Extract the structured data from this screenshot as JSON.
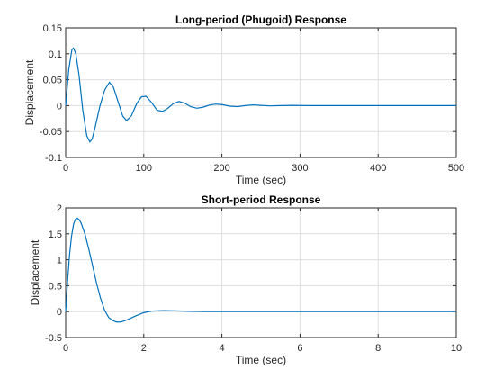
{
  "chart_data": [
    {
      "type": "line",
      "title": "Long-period (Phugoid) Response",
      "xlabel": "Time (sec)",
      "ylabel": "Displacement",
      "xlim": [
        0,
        500
      ],
      "ylim": [
        -0.1,
        0.15
      ],
      "xticks": [
        0,
        100,
        200,
        300,
        400,
        500
      ],
      "xtick_labels": [
        "0",
        "100",
        "200",
        "300",
        "400",
        "500"
      ],
      "yticks": [
        -0.1,
        -0.05,
        0,
        0.05,
        0.1,
        0.15
      ],
      "ytick_labels": [
        "-0.1",
        "-0.05",
        "0",
        "0.05",
        "0.1",
        "0.15"
      ],
      "grid": true,
      "series": [
        {
          "color": "#0072bd",
          "x": [
            0,
            4,
            8,
            10,
            13,
            17,
            22,
            27,
            31,
            34,
            38,
            44,
            50,
            56,
            61,
            67,
            73,
            78,
            84,
            91,
            97,
            103,
            110,
            117,
            124,
            130,
            138,
            145,
            152,
            160,
            168,
            176,
            184,
            192,
            200,
            210,
            220,
            230,
            240,
            250,
            262,
            275,
            290,
            310,
            340,
            380,
            420,
            460,
            500
          ],
          "y": [
            0,
            0.07,
            0.108,
            0.111,
            0.1,
            0.06,
            -0.01,
            -0.058,
            -0.07,
            -0.064,
            -0.04,
            0.0,
            0.03,
            0.045,
            0.036,
            0.008,
            -0.02,
            -0.029,
            -0.02,
            0.004,
            0.017,
            0.018,
            0.006,
            -0.009,
            -0.011,
            -0.006,
            0.004,
            0.008,
            0.005,
            -0.002,
            -0.005,
            -0.003,
            0.001,
            0.003,
            0.002,
            -0.001,
            -0.002,
            0.0,
            0.0015,
            0.0005,
            -0.0005,
            0.0,
            0.0005,
            0.0,
            0.0,
            0.0,
            0.0,
            0.0,
            0.0
          ]
        }
      ]
    },
    {
      "type": "line",
      "title": "Short-period Response",
      "xlabel": "Time (sec)",
      "ylabel": "Displacement",
      "xlim": [
        0,
        10
      ],
      "ylim": [
        -0.5,
        2
      ],
      "xticks": [
        0,
        2,
        4,
        6,
        8,
        10
      ],
      "xtick_labels": [
        "0",
        "2",
        "4",
        "6",
        "8",
        "10"
      ],
      "yticks": [
        -0.5,
        0,
        0.5,
        1,
        1.5,
        2
      ],
      "ytick_labels": [
        "-0.5",
        "0",
        "0.5",
        "1",
        "1.5",
        "2"
      ],
      "grid": true,
      "series": [
        {
          "color": "#0072bd",
          "x": [
            0,
            0.05,
            0.1,
            0.15,
            0.2,
            0.25,
            0.3,
            0.35,
            0.4,
            0.5,
            0.6,
            0.7,
            0.8,
            0.9,
            1.0,
            1.1,
            1.2,
            1.3,
            1.4,
            1.5,
            1.6,
            1.8,
            2.0,
            2.2,
            2.5,
            2.8,
            3.2,
            3.6,
            4.0,
            5.0,
            6.0,
            7.0,
            8.0,
            9.0,
            10.0
          ],
          "y": [
            0,
            0.6,
            1.1,
            1.45,
            1.68,
            1.78,
            1.8,
            1.77,
            1.7,
            1.48,
            1.18,
            0.85,
            0.52,
            0.24,
            0.02,
            -0.11,
            -0.17,
            -0.2,
            -0.2,
            -0.18,
            -0.15,
            -0.08,
            -0.02,
            0.01,
            0.02,
            0.015,
            0.005,
            0.0,
            0.0,
            0.0,
            0.0,
            0.0,
            0.0,
            0.0,
            0.0
          ]
        }
      ]
    }
  ]
}
